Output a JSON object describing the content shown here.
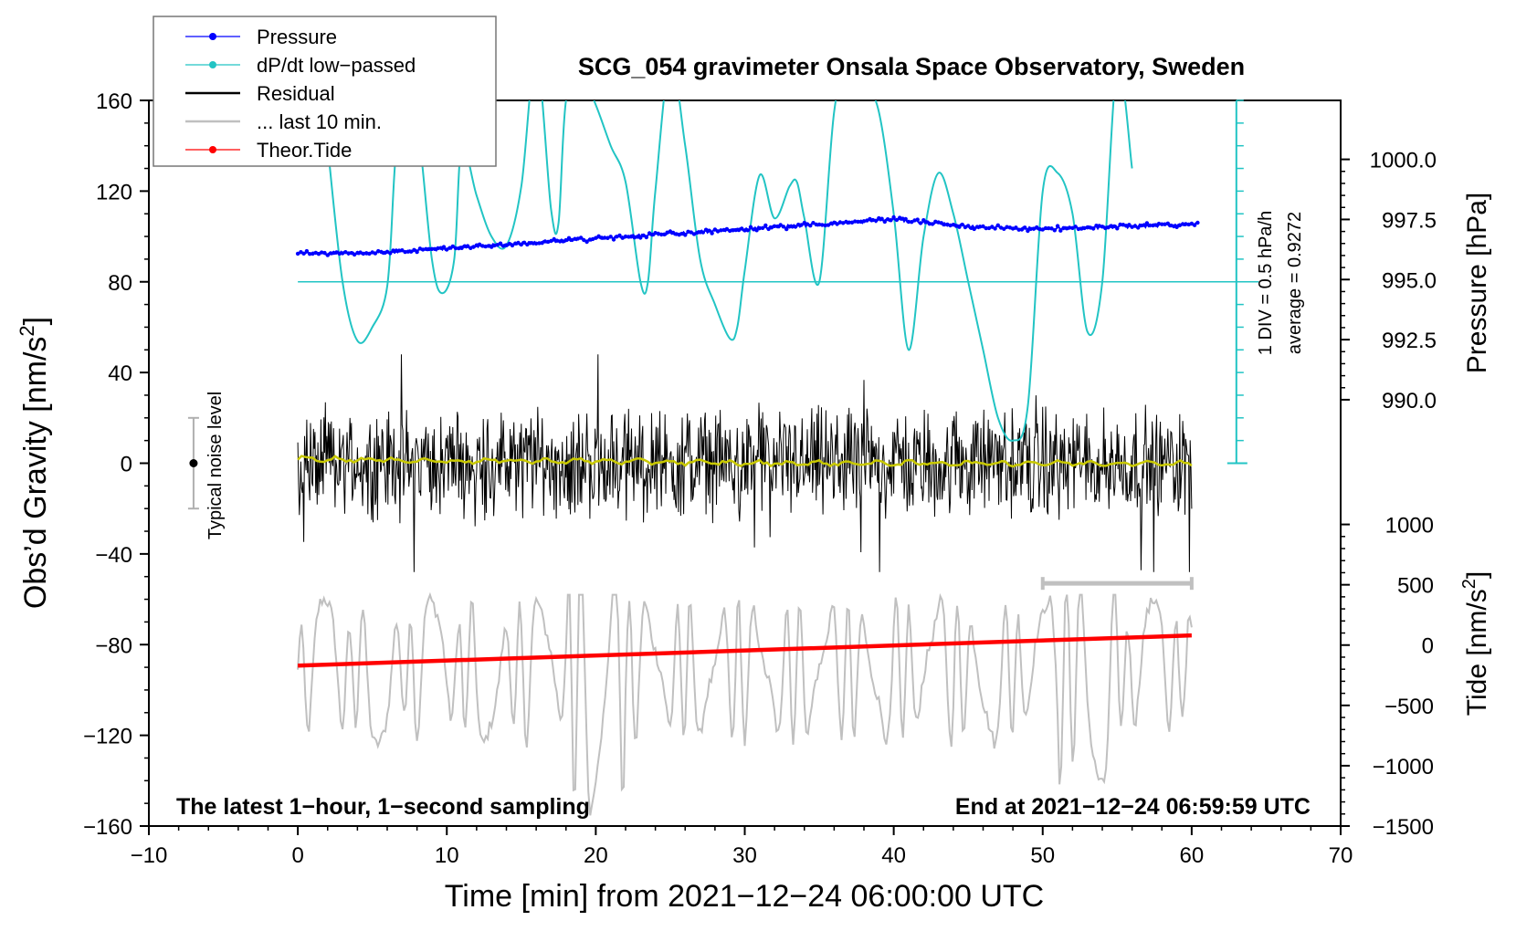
{
  "chart_data": {
    "type": "line",
    "title": "SCG_054 gravimeter Onsala Space Observatory, Sweden",
    "xlabel": "Time [min] from 2021−12−24 06:00:00 UTC",
    "ylabel_left": "Obs’d Gravity [nm/s",
    "ylabel_left_sup": "2",
    "ylabel_left_close": "]",
    "ylabel_pressure": "Pressure [hPa]",
    "ylabel_tide": "Tide [nm/s",
    "ylabel_tide_sup": "2",
    "ylabel_tide_close": "]",
    "xlim": [
      -10,
      70
    ],
    "ylim": [
      -160,
      160
    ],
    "xticks": [
      -10,
      0,
      10,
      20,
      30,
      40,
      50,
      60,
      70
    ],
    "xtick_labels": [
      "−10",
      "0",
      "10",
      "20",
      "30",
      "40",
      "50",
      "60",
      "70"
    ],
    "yticks": [
      -160,
      -120,
      -80,
      -40,
      0,
      40,
      80,
      120,
      160
    ],
    "ytick_labels": [
      "−160",
      "−120",
      "−80",
      "−40",
      "0",
      "40",
      "80",
      "120",
      "160"
    ],
    "pressure_axis": {
      "ticks": [
        990.0,
        992.5,
        995.0,
        997.5,
        1000.0
      ],
      "tick_labels": [
        "990.0",
        "992.5",
        "995.0",
        "997.5",
        "1000.0"
      ],
      "gravity_equiv": [
        [
          990.0,
          28
        ],
        [
          1000.0,
          134
        ]
      ]
    },
    "tide_axis": {
      "ticks": [
        -1500,
        -1000,
        -500,
        0,
        500,
        1000
      ],
      "tick_labels": [
        "−1500",
        "−1000",
        "−500",
        "0",
        "500",
        "1000"
      ],
      "gravity_equiv": [
        [
          -1500,
          -160
        ],
        [
          1000,
          -27
        ]
      ]
    },
    "legend": [
      {
        "label": "Pressure",
        "color": "#0000ff",
        "marker": true
      },
      {
        "label": "dP/dt low−passed",
        "color": "#22c4c4",
        "marker": true
      },
      {
        "label": "Residual",
        "color": "#000000",
        "marker": false
      },
      {
        "label": "... last 10 min.",
        "color": "#c0c0c0",
        "marker": false
      },
      {
        "label": "Theor.Tide",
        "color": "#ff0000",
        "marker": true
      }
    ],
    "legend_position": "top-left",
    "series": [
      {
        "name": "Pressure",
        "color": "#0000ff",
        "x": [
          0,
          5,
          10,
          15,
          20,
          25,
          30,
          35,
          40,
          42,
          45,
          50,
          55,
          60
        ],
        "values": [
          996.1,
          996.1,
          996.3,
          996.5,
          996.7,
          996.9,
          997.1,
          997.3,
          997.5,
          997.4,
          997.2,
          997.1,
          997.2,
          997.3
        ]
      },
      {
        "name": "dP/dt low−passed",
        "color": "#22c4c4",
        "x": [
          2,
          3,
          4,
          5,
          6,
          6.5,
          7,
          8,
          9,
          9.7,
          10.5,
          11,
          12,
          13,
          14,
          15,
          16,
          17,
          17.5,
          18,
          19,
          20,
          21,
          22,
          23,
          23.5,
          24,
          25,
          26,
          27,
          28,
          29,
          29.5,
          30,
          31,
          32,
          33,
          33.5,
          34,
          35,
          36,
          37,
          38,
          39,
          40,
          41,
          42,
          43,
          44,
          45,
          46,
          47,
          48,
          49,
          50,
          51,
          52,
          53,
          54,
          55,
          56
        ],
        "values": [
          140,
          80,
          54,
          60,
          78,
          130,
          175,
          152,
          90,
          75,
          90,
          140,
          118,
          100,
          96,
          122,
          180,
          112,
          106,
          160,
          172,
          158,
          140,
          124,
          80,
          80,
          120,
          178,
          140,
          90,
          70,
          55,
          60,
          85,
          127,
          108,
          122,
          124,
          108,
          80,
          155,
          180,
          168,
          155,
          110,
          50,
          100,
          128,
          110,
          80,
          50,
          20,
          10,
          25,
          120,
          128,
          110,
          58,
          80,
          175,
          130
        ]
      },
      {
        "name": "Residual",
        "color": "#000000",
        "x": [
          0,
          60
        ],
        "amplitude_envelope": [
          -48,
          48
        ]
      },
      {
        "name": "Residual (smoothed)",
        "color": "#c9c900",
        "x": [
          0,
          10,
          20,
          30,
          40,
          50,
          60
        ],
        "values": [
          2,
          1,
          1,
          0,
          0,
          0,
          0
        ]
      },
      {
        "name": "... last 10 min.",
        "color": "#c0c0c0",
        "x": [
          0,
          60
        ],
        "center": -92,
        "amplitude_envelope": [
          -160,
          -60
        ]
      },
      {
        "name": "Theor.Tide",
        "color": "#ff0000",
        "x": [
          0,
          60
        ],
        "values": [
          -170,
          80
        ]
      }
    ],
    "noise_bar": {
      "x": -7,
      "center": 0,
      "half_range": 20,
      "label": "Typical noise level"
    },
    "time_bar": {
      "x_start": 50,
      "x_end": 60,
      "y": -53
    },
    "dpdt_scale": {
      "baseline": 80,
      "div_step": 10,
      "label1": "1 DIV = 0.5 hPa/h",
      "label2": "average = 0.9272"
    },
    "footer_left": "The latest 1−hour, 1−second sampling",
    "footer_right": "End at 2021−12−24 06:59:59 UTC"
  }
}
